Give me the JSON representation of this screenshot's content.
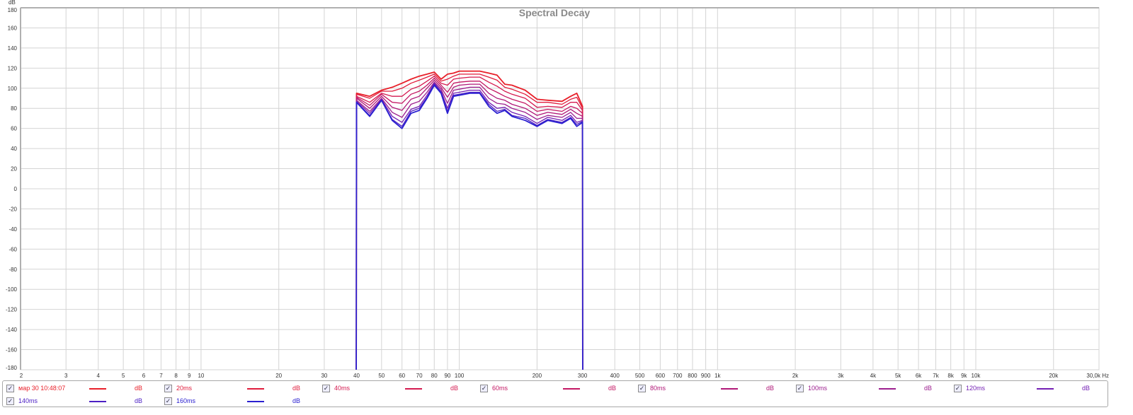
{
  "chart_data": {
    "type": "line",
    "title": "Spectral Decay",
    "ylabel": "dB",
    "xlabel": "Hz",
    "xscale": "log",
    "xlim": [
      2,
      30000
    ],
    "ylim": [
      -180,
      180
    ],
    "grid": true,
    "yticks": [
      180,
      160,
      140,
      120,
      100,
      80,
      60,
      40,
      20,
      0,
      -20,
      -40,
      -60,
      -80,
      -100,
      -120,
      -140,
      -160,
      -180
    ],
    "xticks": [
      {
        "v": 2,
        "l": "2"
      },
      {
        "v": 3,
        "l": "3"
      },
      {
        "v": 4,
        "l": "4"
      },
      {
        "v": 5,
        "l": "5"
      },
      {
        "v": 6,
        "l": "6"
      },
      {
        "v": 7,
        "l": "7"
      },
      {
        "v": 8,
        "l": "8"
      },
      {
        "v": 9,
        "l": "9"
      },
      {
        "v": 10,
        "l": "10"
      },
      {
        "v": 20,
        "l": "20"
      },
      {
        "v": 30,
        "l": "30"
      },
      {
        "v": 40,
        "l": "40"
      },
      {
        "v": 50,
        "l": "50"
      },
      {
        "v": 60,
        "l": "60"
      },
      {
        "v": 70,
        "l": "70"
      },
      {
        "v": 80,
        "l": "80"
      },
      {
        "v": 90,
        "l": "90"
      },
      {
        "v": 100,
        "l": "100"
      },
      {
        "v": 200,
        "l": "200"
      },
      {
        "v": 300,
        "l": "300"
      },
      {
        "v": 400,
        "l": "400"
      },
      {
        "v": 500,
        "l": "500"
      },
      {
        "v": 600,
        "l": "600"
      },
      {
        "v": 700,
        "l": "700"
      },
      {
        "v": 800,
        "l": "800"
      },
      {
        "v": 900,
        "l": "900"
      },
      {
        "v": 1000,
        "l": "1k"
      },
      {
        "v": 2000,
        "l": "2k"
      },
      {
        "v": 3000,
        "l": "3k"
      },
      {
        "v": 4000,
        "l": "4k"
      },
      {
        "v": 5000,
        "l": "5k"
      },
      {
        "v": 6000,
        "l": "6k"
      },
      {
        "v": 7000,
        "l": "7k"
      },
      {
        "v": 8000,
        "l": "8k"
      },
      {
        "v": 9000,
        "l": "9k"
      },
      {
        "v": 10000,
        "l": "10k"
      },
      {
        "v": 20000,
        "l": "20k"
      },
      {
        "v": 30000,
        "l": "30,0k Hz"
      }
    ],
    "x": [
      39.9,
      40,
      45,
      50,
      55,
      60,
      65,
      70,
      75,
      80,
      85,
      90,
      95,
      100,
      110,
      120,
      130,
      140,
      150,
      160,
      180,
      200,
      220,
      250,
      270,
      285,
      300,
      300.5
    ],
    "series": [
      {
        "name": "мар 30 10:48:07",
        "color": "#e8202a",
        "values": [
          -180,
          95,
          92,
          98,
          101,
          105,
          109,
          112,
          114,
          116,
          109,
          114,
          115,
          117,
          117,
          117,
          115,
          113,
          104,
          103,
          98,
          89,
          88,
          87,
          92,
          95,
          82,
          -180
        ]
      },
      {
        "name": "20ms",
        "color": "#e01c3c",
        "values": [
          -180,
          94,
          90,
          97,
          97,
          100,
          105,
          108,
          111,
          114,
          107,
          109,
          112,
          114,
          114,
          114,
          111,
          108,
          101,
          99,
          94,
          86,
          86,
          84,
          89,
          91,
          80,
          -180
        ]
      },
      {
        "name": "40ms",
        "color": "#d41a50",
        "values": [
          -180,
          92,
          86,
          95,
          92,
          92,
          99,
          102,
          107,
          112,
          105,
          103,
          109,
          110,
          111,
          111,
          106,
          102,
          97,
          94,
          90,
          81,
          82,
          81,
          86,
          86,
          78,
          -180
        ]
      },
      {
        "name": "60ms",
        "color": "#c41864",
        "values": [
          -180,
          91,
          83,
          94,
          86,
          85,
          94,
          97,
          103,
          110,
          103,
          96,
          105,
          106,
          107,
          107,
          100,
          96,
          92,
          89,
          85,
          77,
          79,
          77,
          82,
          80,
          75,
          -180
        ]
      },
      {
        "name": "80ms",
        "color": "#b01878",
        "values": [
          -180,
          90,
          80,
          92,
          81,
          78,
          89,
          92,
          100,
          108,
          101,
          91,
          101,
          103,
          104,
          104,
          95,
          90,
          88,
          84,
          80,
          73,
          76,
          74,
          79,
          75,
          72,
          -180
        ]
      },
      {
        "name": "100ms",
        "color": "#9c1e8e",
        "values": [
          -180,
          88,
          77,
          90,
          76,
          71,
          84,
          87,
          96,
          106,
          99,
          85,
          98,
          99,
          101,
          101,
          90,
          85,
          84,
          80,
          76,
          69,
          73,
          71,
          76,
          70,
          70,
          -180
        ]
      },
      {
        "name": "120ms",
        "color": "#7420b4",
        "values": [
          -180,
          87,
          75,
          89,
          72,
          66,
          79,
          82,
          93,
          105,
          97,
          80,
          95,
          96,
          98,
          98,
          86,
          80,
          81,
          76,
          72,
          65,
          71,
          68,
          73,
          66,
          68,
          -180
        ]
      },
      {
        "name": "140ms",
        "color": "#4c20c4",
        "values": [
          -180,
          86,
          73,
          88,
          69,
          62,
          77,
          80,
          91,
          104,
          96,
          77,
          93,
          94,
          96,
          96,
          84,
          77,
          79,
          73,
          70,
          63,
          69,
          66,
          71,
          64,
          67,
          -180
        ]
      },
      {
        "name": "160ms",
        "color": "#2a20d0",
        "values": [
          -180,
          86,
          72,
          88,
          68,
          60,
          75,
          78,
          90,
          103,
          95,
          75,
          92,
          93,
          95,
          95,
          82,
          75,
          78,
          72,
          68,
          62,
          68,
          65,
          70,
          62,
          66,
          -180
        ]
      }
    ]
  },
  "legend": {
    "unit": "dB",
    "check_glyph": "✓"
  }
}
